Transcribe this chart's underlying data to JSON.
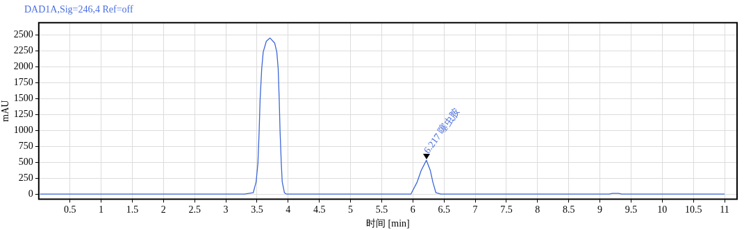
{
  "chart_data": {
    "type": "line",
    "title": "DAD1A,Sig=246,4 Ref=off",
    "xlabel": "时间 [min]",
    "ylabel": "mAU",
    "series": [
      {
        "color": "#3a66d8",
        "x": [
          0.02,
          2.9,
          3.3,
          3.44,
          3.486,
          3.515,
          3.535,
          3.55,
          3.576,
          3.6,
          3.65,
          3.71,
          3.784,
          3.818,
          3.84,
          3.857,
          3.87,
          3.89,
          3.905,
          3.94,
          3.97,
          4.9,
          5.8,
          5.97,
          6.07,
          6.134,
          6.217,
          6.28,
          6.32,
          6.37,
          6.45,
          9.15,
          9.2,
          9.3,
          9.35,
          11.0
        ],
        "values": [
          0,
          0,
          0,
          20,
          190,
          480,
          990,
          1480,
          1970,
          2230,
          2400,
          2450,
          2370,
          2230,
          1970,
          1480,
          990,
          480,
          190,
          20,
          0,
          0,
          0,
          0,
          190,
          370,
          530,
          370,
          190,
          20,
          0,
          0,
          10,
          10,
          0,
          0
        ]
      }
    ],
    "annotations": [
      {
        "text": "6.217 噻虫胺",
        "x": 6.217,
        "y": 530
      }
    ],
    "xlim": [
      0,
      11.2
    ],
    "xticks": [
      0.5,
      1,
      1.5,
      2,
      2.5,
      3,
      3.5,
      4,
      4.5,
      5,
      5.5,
      6,
      6.5,
      7,
      7.5,
      8,
      8.5,
      9,
      9.5,
      10,
      10.5,
      11
    ],
    "ylim": [
      -80,
      2690
    ],
    "yticks": [
      0,
      250,
      500,
      750,
      1000,
      1250,
      1500,
      1750,
      2000,
      2250,
      2500
    ],
    "grid": true,
    "legend": false,
    "marker": "none",
    "line_style": "solid"
  }
}
